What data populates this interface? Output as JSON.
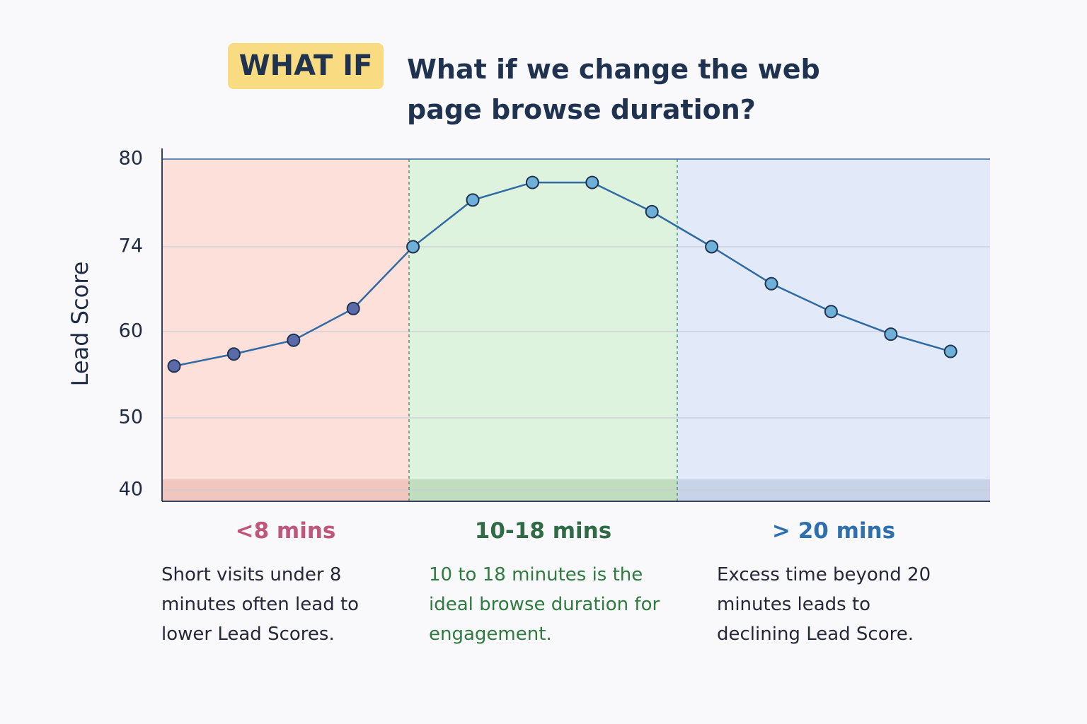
{
  "badge": "WHAT IF",
  "chart_data": {
    "type": "line",
    "title": "What if we change the web page browse duration?",
    "y_label": "Lead Score",
    "ylim": [
      40,
      80
    ],
    "yticks": [
      80,
      74,
      60,
      50,
      40
    ],
    "grid": true,
    "series": [
      {
        "color": "#2f6aa5",
        "values": [
          56,
          57.4,
          59,
          63.8,
          74,
          77.2,
          78.4,
          78.4,
          76.4,
          74,
          67.9,
          63.3,
          59.7,
          57.7
        ]
      }
    ],
    "zones": [
      {
        "label": "<8 mins",
        "description": "Short visits under 8 minutes often lead to lower Lead Scores.",
        "color": "#fde0da",
        "label_color": "#c0577a",
        "point_color": "#5b6aa8"
      },
      {
        "label": "10-18 mins",
        "description": "10 to 18 minutes is the ideal browse duration for engagement.",
        "color": "#def3dd",
        "label_color": "#2f6b45",
        "point_color": "#6fb0d8"
      },
      {
        "label": "> 20 mins",
        "description": "Excess time beyond 20 minutes leads to declining Lead Score.",
        "color": "#e2e9f8",
        "label_color": "#2e6fad",
        "point_color": "#6fb0d8"
      }
    ]
  }
}
